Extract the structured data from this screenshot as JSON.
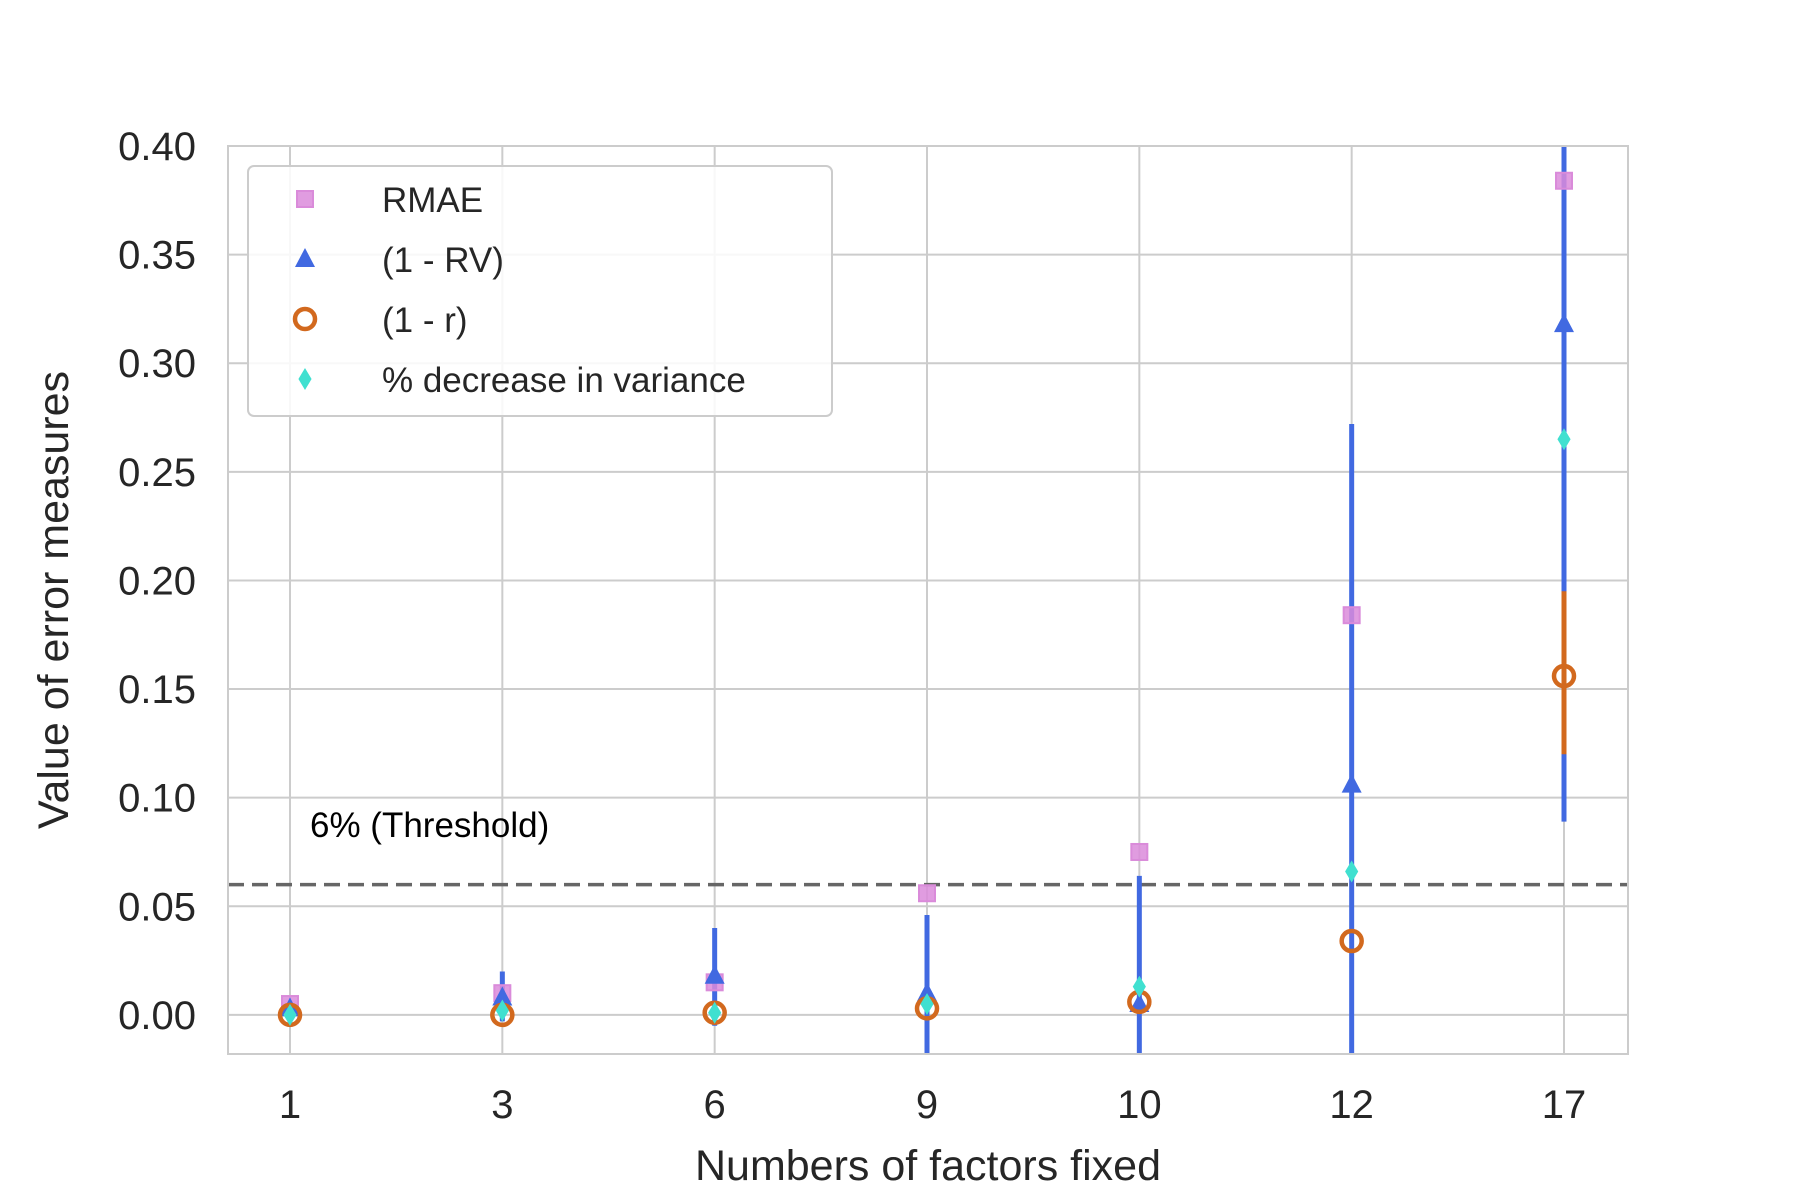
{
  "chart_data": {
    "type": "scatter",
    "title": "",
    "xlabel": "Numbers of factors fixed",
    "ylabel": "Value of error measures",
    "categories": [
      "1",
      "3",
      "6",
      "9",
      "10",
      "12",
      "17"
    ],
    "ylim": [
      -0.018,
      0.4
    ],
    "yticks": [
      "0.00",
      "0.05",
      "0.10",
      "0.15",
      "0.20",
      "0.25",
      "0.30",
      "0.35",
      "0.40"
    ],
    "ytick_values": [
      0,
      0.05,
      0.1,
      0.15,
      0.2,
      0.25,
      0.3,
      0.35,
      0.4
    ],
    "grid": true,
    "legend_position": "top-left",
    "series": [
      {
        "name": "RMAE",
        "marker": "square",
        "color": "#DA8BDA",
        "values": [
          0.005,
          0.01,
          0.015,
          0.056,
          0.075,
          0.184,
          0.384
        ]
      },
      {
        "name": "(1 - RV)",
        "marker": "triangle",
        "color": "#4169E1",
        "values": [
          0.003,
          0.008,
          0.018,
          0.01,
          0.005,
          0.106,
          0.318
        ],
        "error_low": [
          0.0,
          -0.003,
          -0.005,
          -0.018,
          -0.018,
          -0.018,
          0.089
        ],
        "error_high": [
          0.006,
          0.02,
          0.04,
          0.046,
          0.064,
          0.272,
          0.4
        ]
      },
      {
        "name": "(1 - r)",
        "marker": "circle-open",
        "color": "#D2691E",
        "values": [
          0.0,
          0.0,
          0.001,
          0.003,
          0.006,
          0.034,
          0.156
        ],
        "error_low": [
          null,
          null,
          null,
          null,
          null,
          null,
          0.12
        ],
        "error_high": [
          null,
          null,
          null,
          null,
          null,
          null,
          0.195
        ]
      },
      {
        "name": "% decrease in variance",
        "marker": "thin-diamond",
        "color": "#40E0D0",
        "values": [
          0.0,
          0.002,
          0.001,
          0.005,
          0.013,
          0.066,
          0.265
        ]
      }
    ],
    "threshold": {
      "value": 0.06,
      "label": "6% (Threshold)",
      "color": "#666666"
    },
    "grid_color": "#CCCCCC"
  }
}
